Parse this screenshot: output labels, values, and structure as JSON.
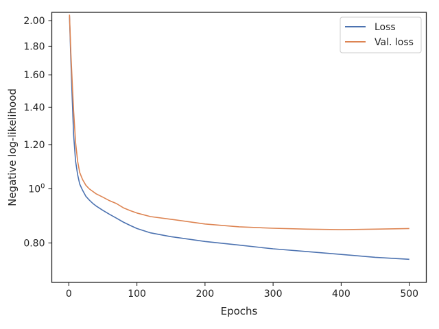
{
  "chart_data": {
    "type": "line",
    "title": "",
    "xlabel": "Epochs",
    "ylabel": "Negative log-likelihood",
    "xlim": [
      -25,
      525
    ],
    "ylim": [
      0.68,
      2.07
    ],
    "y_scale": "log",
    "x_ticks": [
      {
        "value": 0,
        "label": "0"
      },
      {
        "value": 100,
        "label": "100"
      },
      {
        "value": 200,
        "label": "200"
      },
      {
        "value": 300,
        "label": "300"
      },
      {
        "value": 400,
        "label": "400"
      },
      {
        "value": 500,
        "label": "500"
      }
    ],
    "y_ticks": [
      {
        "value": 0.8,
        "label": "0.80",
        "sup": ""
      },
      {
        "value": 1.0,
        "label": "10",
        "sup": "0"
      },
      {
        "value": 1.2,
        "label": "1.20",
        "sup": ""
      },
      {
        "value": 1.4,
        "label": "1.40",
        "sup": ""
      },
      {
        "value": 1.6,
        "label": "1.60",
        "sup": ""
      },
      {
        "value": 1.8,
        "label": "1.80",
        "sup": ""
      },
      {
        "value": 2.0,
        "label": "2.00",
        "sup": ""
      }
    ],
    "grid": false,
    "legend_position": "top-right",
    "series": [
      {
        "name": "Loss",
        "color": "#4c72b0",
        "x": [
          1,
          3,
          5,
          7,
          10,
          13,
          16,
          20,
          25,
          30,
          35,
          40,
          50,
          60,
          70,
          80,
          90,
          100,
          120,
          150,
          200,
          250,
          300,
          350,
          400,
          450,
          500
        ],
        "y": [
          2.04,
          1.7,
          1.45,
          1.25,
          1.12,
          1.06,
          1.02,
          0.995,
          0.97,
          0.955,
          0.942,
          0.932,
          0.915,
          0.9,
          0.886,
          0.872,
          0.86,
          0.849,
          0.834,
          0.821,
          0.805,
          0.793,
          0.781,
          0.772,
          0.763,
          0.754,
          0.748
        ]
      },
      {
        "name": "Val. loss",
        "color": "#dd8452",
        "x": [
          1,
          3,
          5,
          7,
          10,
          13,
          16,
          20,
          25,
          30,
          35,
          40,
          50,
          60,
          70,
          80,
          90,
          100,
          120,
          150,
          200,
          250,
          300,
          350,
          400,
          450,
          500
        ],
        "y": [
          2.05,
          1.75,
          1.55,
          1.38,
          1.21,
          1.12,
          1.07,
          1.04,
          1.015,
          1.0,
          0.99,
          0.98,
          0.966,
          0.952,
          0.941,
          0.925,
          0.914,
          0.905,
          0.892,
          0.882,
          0.865,
          0.855,
          0.85,
          0.847,
          0.845,
          0.847,
          0.849
        ]
      }
    ]
  }
}
